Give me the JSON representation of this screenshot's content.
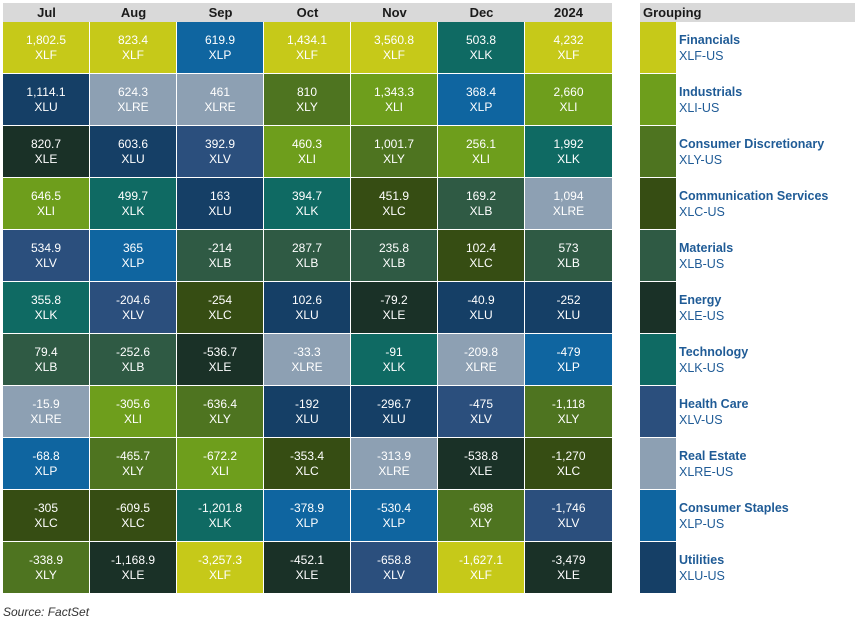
{
  "chart_data": {
    "type": "table",
    "columns": [
      "Jul",
      "Aug",
      "Sep",
      "Oct",
      "Nov",
      "Dec",
      "2024"
    ],
    "rows": [
      [
        [
          "1,802.5",
          "XLF"
        ],
        [
          "823.4",
          "XLF"
        ],
        [
          "619.9",
          "XLP"
        ],
        [
          "1,434.1",
          "XLF"
        ],
        [
          "3,560.8",
          "XLF"
        ],
        [
          "503.8",
          "XLK"
        ],
        [
          "4,232",
          "XLF"
        ]
      ],
      [
        [
          "1,114.1",
          "XLU"
        ],
        [
          "624.3",
          "XLRE"
        ],
        [
          "461",
          "XLRE"
        ],
        [
          "810",
          "XLY"
        ],
        [
          "1,343.3",
          "XLI"
        ],
        [
          "368.4",
          "XLP"
        ],
        [
          "2,660",
          "XLI"
        ]
      ],
      [
        [
          "820.7",
          "XLE"
        ],
        [
          "603.6",
          "XLU"
        ],
        [
          "392.9",
          "XLV"
        ],
        [
          "460.3",
          "XLI"
        ],
        [
          "1,001.7",
          "XLY"
        ],
        [
          "256.1",
          "XLI"
        ],
        [
          "1,992",
          "XLK"
        ]
      ],
      [
        [
          "646.5",
          "XLI"
        ],
        [
          "499.7",
          "XLK"
        ],
        [
          "163",
          "XLU"
        ],
        [
          "394.7",
          "XLK"
        ],
        [
          "451.9",
          "XLC"
        ],
        [
          "169.2",
          "XLB"
        ],
        [
          "1,094",
          "XLRE"
        ]
      ],
      [
        [
          "534.9",
          "XLV"
        ],
        [
          "365",
          "XLP"
        ],
        [
          "-214",
          "XLB"
        ],
        [
          "287.7",
          "XLB"
        ],
        [
          "235.8",
          "XLB"
        ],
        [
          "102.4",
          "XLC"
        ],
        [
          "573",
          "XLB"
        ]
      ],
      [
        [
          "355.8",
          "XLK"
        ],
        [
          "-204.6",
          "XLV"
        ],
        [
          "-254",
          "XLC"
        ],
        [
          "102.6",
          "XLU"
        ],
        [
          "-79.2",
          "XLE"
        ],
        [
          "-40.9",
          "XLU"
        ],
        [
          "-252",
          "XLU"
        ]
      ],
      [
        [
          "79.4",
          "XLB"
        ],
        [
          "-252.6",
          "XLB"
        ],
        [
          "-536.7",
          "XLE"
        ],
        [
          "-33.3",
          "XLRE"
        ],
        [
          "-91",
          "XLK"
        ],
        [
          "-209.8",
          "XLRE"
        ],
        [
          "-479",
          "XLP"
        ]
      ],
      [
        [
          "-15.9",
          "XLRE"
        ],
        [
          "-305.6",
          "XLI"
        ],
        [
          "-636.4",
          "XLY"
        ],
        [
          "-192",
          "XLU"
        ],
        [
          "-296.7",
          "XLU"
        ],
        [
          "-475",
          "XLV"
        ],
        [
          "-1,118",
          "XLY"
        ]
      ],
      [
        [
          "-68.8",
          "XLP"
        ],
        [
          "-465.7",
          "XLY"
        ],
        [
          "-672.2",
          "XLI"
        ],
        [
          "-353.4",
          "XLC"
        ],
        [
          "-313.9",
          "XLRE"
        ],
        [
          "-538.8",
          "XLE"
        ],
        [
          "-1,270",
          "XLC"
        ]
      ],
      [
        [
          "-305",
          "XLC"
        ],
        [
          "-609.5",
          "XLC"
        ],
        [
          "-1,201.8",
          "XLK"
        ],
        [
          "-378.9",
          "XLP"
        ],
        [
          "-530.4",
          "XLP"
        ],
        [
          "-698",
          "XLY"
        ],
        [
          "-1,746",
          "XLV"
        ]
      ],
      [
        [
          "-338.9",
          "XLY"
        ],
        [
          "-1,168.9",
          "XLE"
        ],
        [
          "-3,257.3",
          "XLF"
        ],
        [
          "-452.1",
          "XLE"
        ],
        [
          "-658.8",
          "XLV"
        ],
        [
          "-1,627.1",
          "XLF"
        ],
        [
          "-3,479",
          "XLE"
        ]
      ]
    ]
  },
  "legend": {
    "title": "Grouping",
    "items": [
      {
        "name": "Financials",
        "ticker": "XLF-US",
        "key": "XLF"
      },
      {
        "name": "Industrials",
        "ticker": "XLI-US",
        "key": "XLI"
      },
      {
        "name": "Consumer Discretionary",
        "ticker": "XLY-US",
        "key": "XLY"
      },
      {
        "name": "Communication Services",
        "ticker": "XLC-US",
        "key": "XLC"
      },
      {
        "name": "Materials",
        "ticker": "XLB-US",
        "key": "XLB"
      },
      {
        "name": "Energy",
        "ticker": "XLE-US",
        "key": "XLE"
      },
      {
        "name": "Technology",
        "ticker": "XLK-US",
        "key": "XLK"
      },
      {
        "name": "Health Care",
        "ticker": "XLV-US",
        "key": "XLV"
      },
      {
        "name": "Real Estate",
        "ticker": "XLRE-US",
        "key": "XLRE"
      },
      {
        "name": "Consumer Staples",
        "ticker": "XLP-US",
        "key": "XLP"
      },
      {
        "name": "Utilities",
        "ticker": "XLU-US",
        "key": "XLU"
      }
    ]
  },
  "colors": {
    "XLF": "#c6c919",
    "XLI": "#6e9e1c",
    "XLY": "#4e7420",
    "XLC": "#364d13",
    "XLB": "#2f5a44",
    "XLE": "#1a3127",
    "XLK": "#0f6a63",
    "XLV": "#2b4f7d",
    "XLRE": "#8da0b3",
    "XLP": "#0f65a0",
    "XLU": "#153f66"
  },
  "source": "Source: FactSet"
}
